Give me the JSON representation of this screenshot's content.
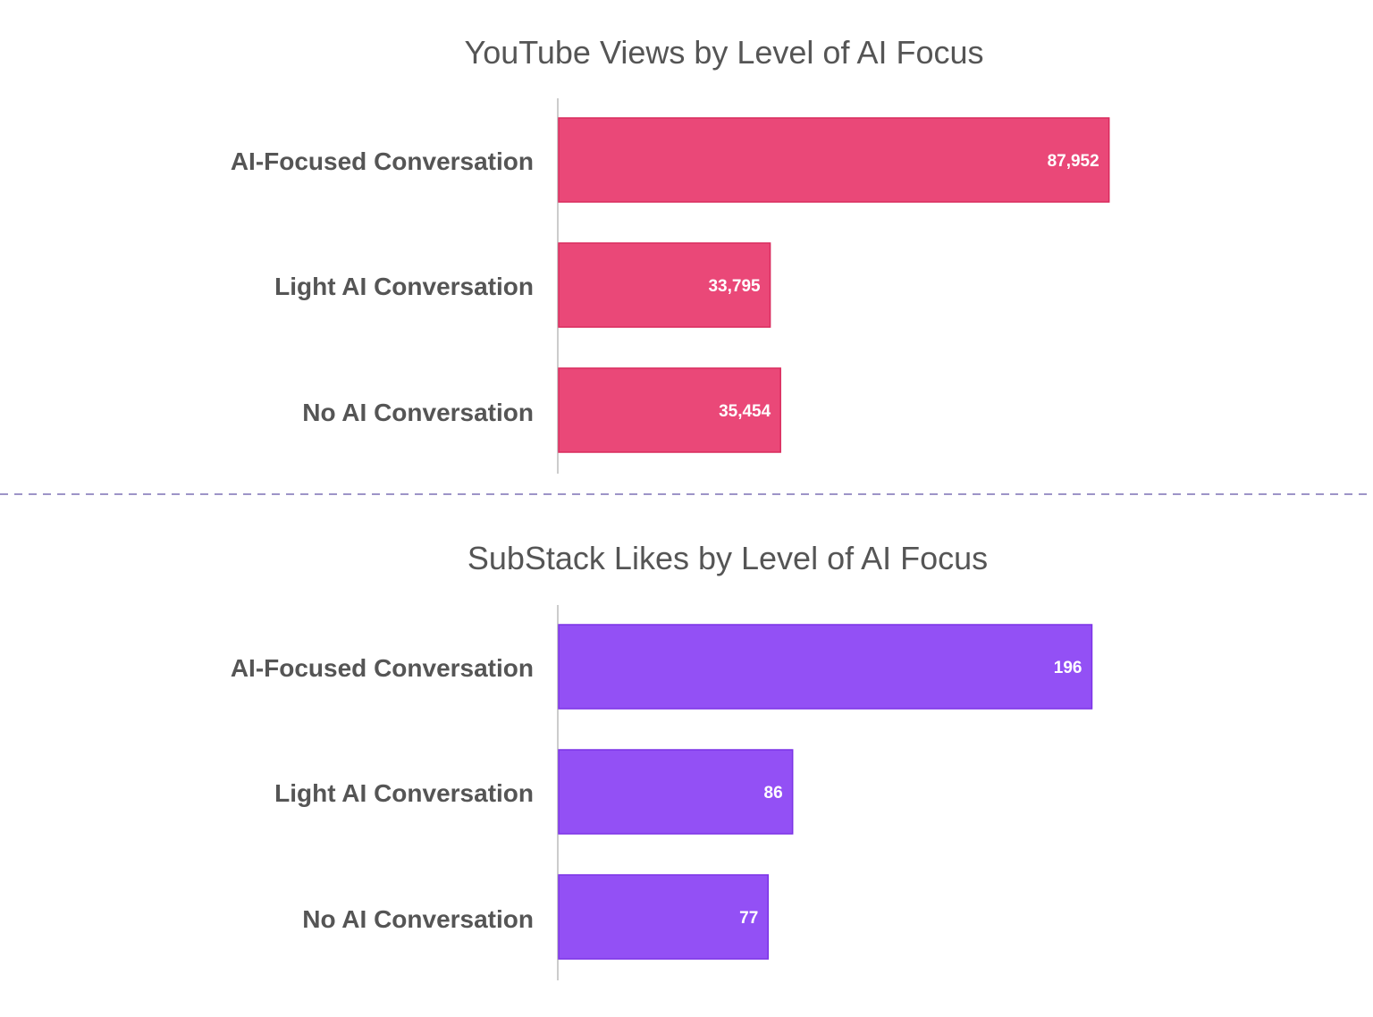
{
  "chart_data": [
    {
      "type": "bar",
      "orientation": "horizontal",
      "title": "YouTube Views by Level of AI Focus",
      "categories": [
        "AI-Focused Conversation",
        "Light AI Conversation",
        "No AI Conversation"
      ],
      "values": [
        87952,
        33795,
        35454
      ],
      "value_labels": [
        "87,952",
        "33,795",
        "35,454"
      ],
      "color": "#ea4878",
      "stroke": "#d92a5c",
      "xlim": [
        0,
        100000
      ],
      "grid": false,
      "legend": "none"
    },
    {
      "type": "bar",
      "orientation": "horizontal",
      "title": "SubStack Likes by Level of AI Focus",
      "categories": [
        "AI-Focused Conversation",
        "Light AI Conversation",
        "No AI Conversation"
      ],
      "values": [
        196,
        86,
        77
      ],
      "value_labels": [
        "196",
        "86",
        "77"
      ],
      "color": "#9350f5",
      "stroke": "#7b32e6",
      "xlim": [
        0,
        230
      ],
      "grid": false,
      "legend": "none"
    }
  ]
}
